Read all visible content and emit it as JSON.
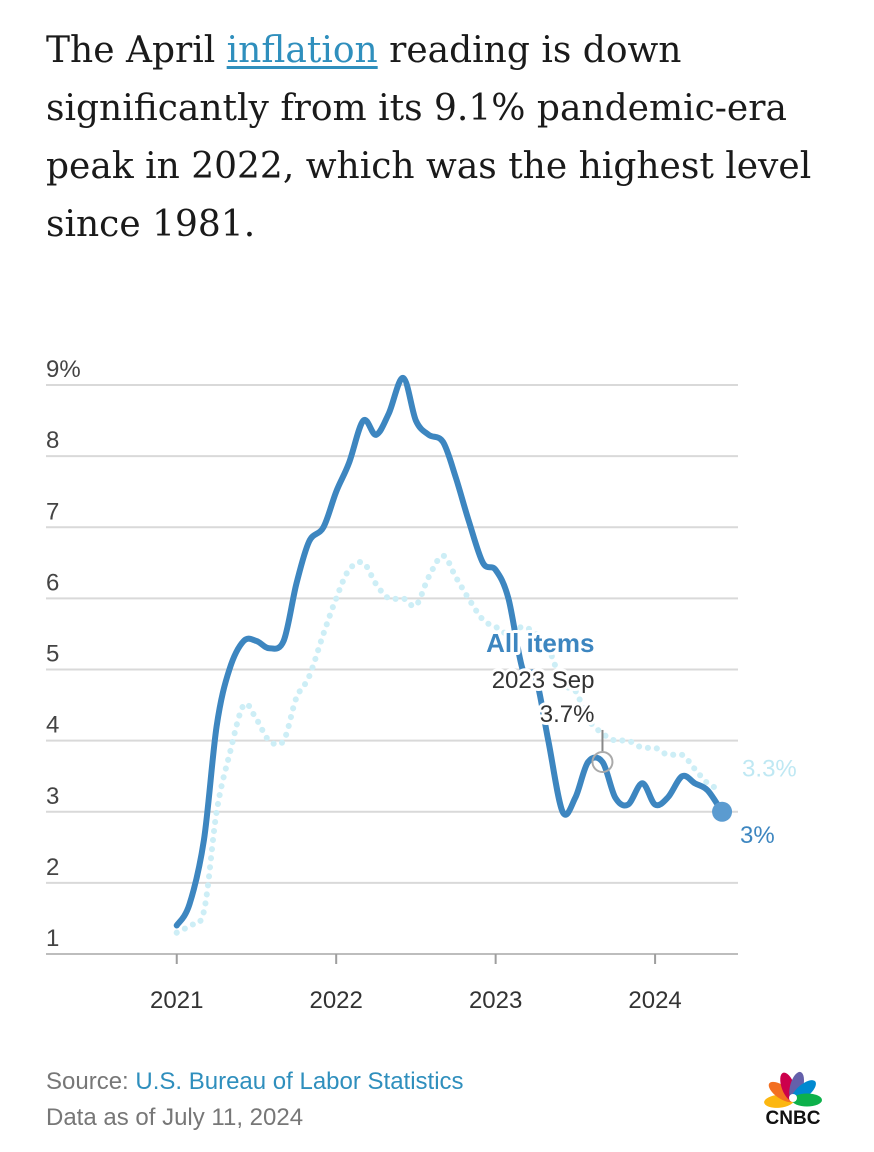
{
  "headline": {
    "before": "The April ",
    "link": "inflation",
    "after": " reading is down significantly from its 9.1% pandemic-era peak in 2022, which was the highest level since 1981."
  },
  "chart_data": {
    "type": "line",
    "ylim": [
      1,
      9
    ],
    "yticks": [
      1,
      2,
      3,
      4,
      5,
      6,
      7,
      8,
      9
    ],
    "ytick_labels": [
      "1",
      "2",
      "3",
      "4",
      "5",
      "6",
      "7",
      "8",
      "9%"
    ],
    "xlim": [
      2020.18,
      2024.52
    ],
    "xticks": [
      2021,
      2022,
      2023,
      2024
    ],
    "xtick_labels": [
      "2021",
      "2022",
      "2023",
      "2024"
    ],
    "grid": true,
    "series": [
      {
        "name": "All items",
        "color": "#3d86c0",
        "style": "solid",
        "end_label": "3%",
        "points": [
          [
            2021.0,
            1.4
          ],
          [
            2021.08,
            1.7
          ],
          [
            2021.17,
            2.6
          ],
          [
            2021.25,
            4.2
          ],
          [
            2021.33,
            5.0
          ],
          [
            2021.42,
            5.4
          ],
          [
            2021.5,
            5.4
          ],
          [
            2021.58,
            5.3
          ],
          [
            2021.67,
            5.4
          ],
          [
            2021.75,
            6.2
          ],
          [
            2021.83,
            6.8
          ],
          [
            2021.92,
            7.0
          ],
          [
            2022.0,
            7.5
          ],
          [
            2022.08,
            7.9
          ],
          [
            2022.17,
            8.5
          ],
          [
            2022.25,
            8.3
          ],
          [
            2022.33,
            8.6
          ],
          [
            2022.42,
            9.1
          ],
          [
            2022.5,
            8.5
          ],
          [
            2022.58,
            8.3
          ],
          [
            2022.67,
            8.2
          ],
          [
            2022.75,
            7.7
          ],
          [
            2022.83,
            7.1
          ],
          [
            2022.92,
            6.5
          ],
          [
            2023.0,
            6.4
          ],
          [
            2023.08,
            6.0
          ],
          [
            2023.17,
            5.0
          ],
          [
            2023.25,
            4.9
          ],
          [
            2023.33,
            4.0
          ],
          [
            2023.42,
            3.0
          ],
          [
            2023.5,
            3.2
          ],
          [
            2023.58,
            3.7
          ],
          [
            2023.67,
            3.7
          ],
          [
            2023.75,
            3.2
          ],
          [
            2023.83,
            3.1
          ],
          [
            2023.92,
            3.4
          ],
          [
            2024.0,
            3.1
          ],
          [
            2024.08,
            3.2
          ],
          [
            2024.17,
            3.5
          ],
          [
            2024.25,
            3.4
          ],
          [
            2024.33,
            3.3
          ],
          [
            2024.42,
            3.0
          ]
        ]
      },
      {
        "name": "",
        "color": "#cdeef6",
        "style": "dotted",
        "end_label": "3.3%",
        "points": [
          [
            2021.0,
            1.3
          ],
          [
            2021.08,
            1.4
          ],
          [
            2021.17,
            1.6
          ],
          [
            2021.25,
            3.0
          ],
          [
            2021.33,
            3.8
          ],
          [
            2021.42,
            4.5
          ],
          [
            2021.5,
            4.3
          ],
          [
            2021.58,
            4.0
          ],
          [
            2021.67,
            4.0
          ],
          [
            2021.75,
            4.6
          ],
          [
            2021.83,
            4.9
          ],
          [
            2021.92,
            5.5
          ],
          [
            2022.0,
            6.0
          ],
          [
            2022.08,
            6.4
          ],
          [
            2022.17,
            6.5
          ],
          [
            2022.25,
            6.2
          ],
          [
            2022.33,
            6.0
          ],
          [
            2022.42,
            6.0
          ],
          [
            2022.5,
            5.9
          ],
          [
            2022.58,
            6.3
          ],
          [
            2022.67,
            6.6
          ],
          [
            2022.75,
            6.3
          ],
          [
            2022.83,
            6.0
          ],
          [
            2022.92,
            5.7
          ],
          [
            2023.0,
            5.6
          ],
          [
            2023.08,
            5.5
          ],
          [
            2023.17,
            5.6
          ],
          [
            2023.25,
            5.5
          ],
          [
            2023.33,
            5.3
          ],
          [
            2023.42,
            4.8
          ],
          [
            2023.5,
            4.7
          ],
          [
            2023.58,
            4.3
          ],
          [
            2023.67,
            4.1
          ],
          [
            2023.75,
            4.0
          ],
          [
            2023.83,
            4.0
          ],
          [
            2023.92,
            3.9
          ],
          [
            2024.0,
            3.9
          ],
          [
            2024.08,
            3.8
          ],
          [
            2024.17,
            3.8
          ],
          [
            2024.25,
            3.6
          ],
          [
            2024.33,
            3.4
          ],
          [
            2024.42,
            3.3
          ]
        ]
      }
    ],
    "annotation": {
      "series_label": "All items",
      "date_label": "2023 Sep",
      "value_label": "3.7%",
      "x": 2023.67,
      "y": 3.7
    }
  },
  "footer": {
    "source_prefix": "Source: ",
    "source_link": "U.S. Bureau of Labor Statistics",
    "data_note": "Data as of July 11, 2024"
  },
  "logo": {
    "icon": "nbc-peacock-icon",
    "text": "CNBC",
    "colors": [
      "#fcb711",
      "#f37021",
      "#cc004c",
      "#6460aa",
      "#0089d0",
      "#0db14b"
    ]
  }
}
